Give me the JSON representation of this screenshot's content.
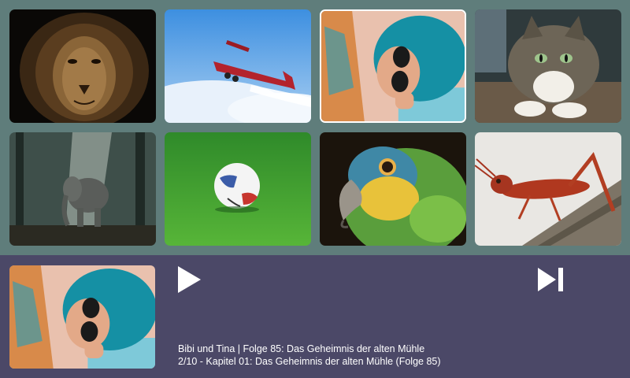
{
  "grid": {
    "tiles": [
      {
        "subject": "lion",
        "selected": false
      },
      {
        "subject": "biplane",
        "selected": false
      },
      {
        "subject": "woman-teal-hair-sunglasses",
        "selected": true
      },
      {
        "subject": "tabby-cat",
        "selected": false
      },
      {
        "subject": "elephant-forest",
        "selected": false
      },
      {
        "subject": "soccer-ball-grass",
        "selected": false
      },
      {
        "subject": "parrot",
        "selected": false
      },
      {
        "subject": "grasshopper",
        "selected": false
      }
    ]
  },
  "player": {
    "cover_subject": "woman-teal-hair-sunglasses",
    "play_icon": "play-icon",
    "next_icon": "skip-next-icon",
    "series_title": "Bibi und Tina | Folge 85: Das Geheimnis der alten Mühle",
    "track_info": "2/10 - Kapitel 01: Das Geheimnis der alten Mühle (Folge 85)"
  },
  "colors": {
    "grid_background": "#5f7d7b",
    "player_background": "#4b4867",
    "text": "#ffffff"
  }
}
